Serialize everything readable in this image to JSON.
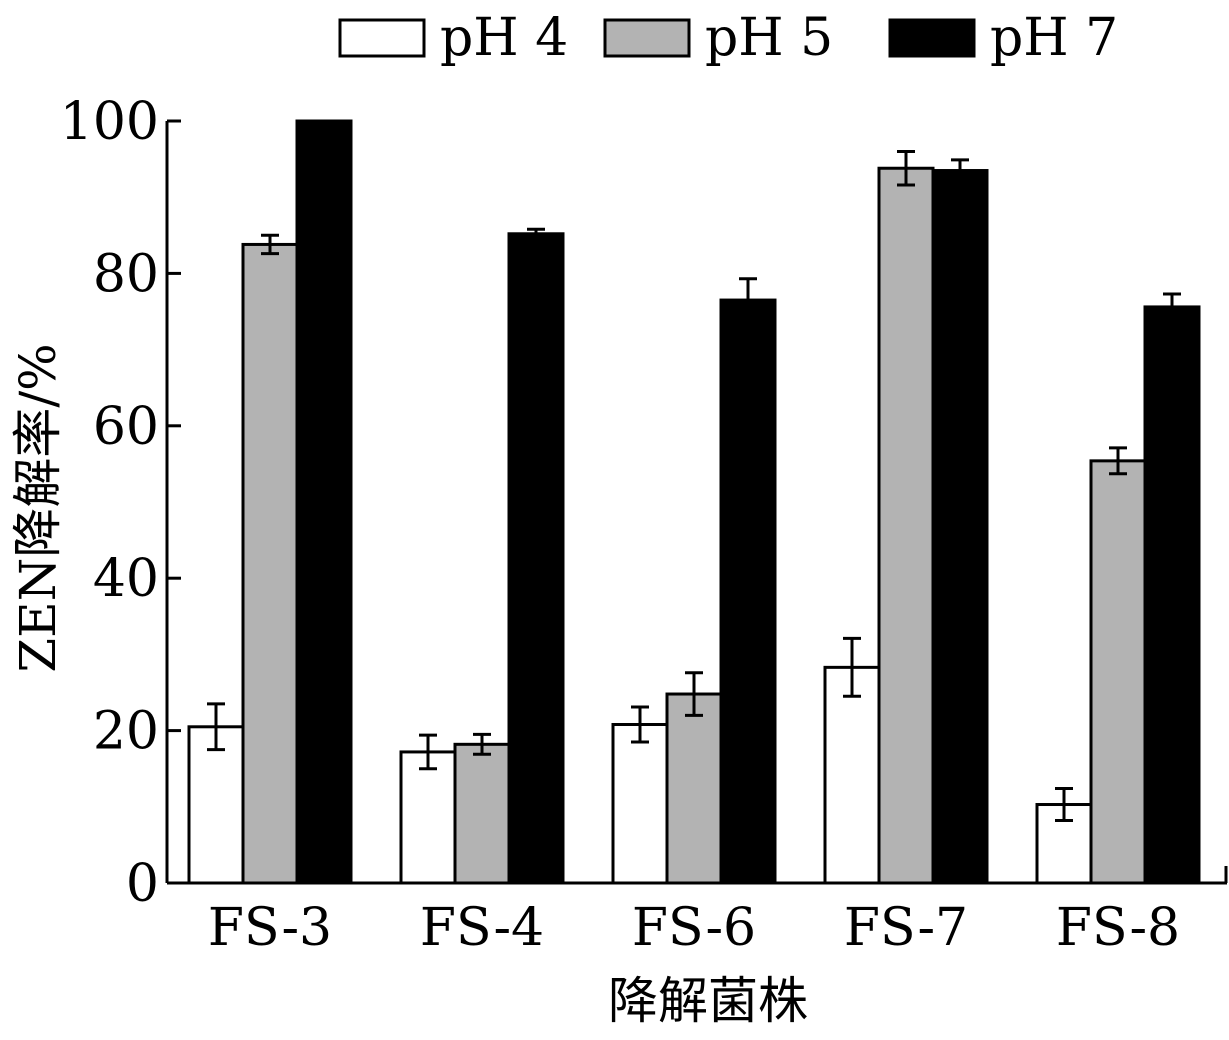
{
  "chart_data": {
    "type": "bar",
    "categories": [
      "FS-3",
      "FS-4",
      "FS-6",
      "FS-7",
      "FS-8"
    ],
    "series": [
      {
        "name": "pH 4",
        "color": "#ffffff",
        "values": [
          20.5,
          17.2,
          20.8,
          28.3,
          10.3
        ],
        "errors": [
          3.0,
          2.2,
          2.3,
          3.8,
          2.1
        ]
      },
      {
        "name": "pH 5",
        "color": "#b3b3b3",
        "values": [
          83.8,
          18.2,
          24.8,
          93.8,
          55.4
        ],
        "errors": [
          1.2,
          1.3,
          2.8,
          2.2,
          1.7
        ]
      },
      {
        "name": "pH 7",
        "color": "#000000",
        "values": [
          100,
          85.2,
          76.5,
          93.5,
          75.6
        ],
        "errors": [
          0,
          0.6,
          2.8,
          1.4,
          1.7
        ]
      }
    ],
    "xlabel": "降解菌株",
    "ylabel": "ZEN降解率/%",
    "ylim": [
      0,
      100
    ],
    "yticks": [
      0,
      20,
      40,
      60,
      80,
      100
    ],
    "grid": false,
    "legend": "top"
  }
}
